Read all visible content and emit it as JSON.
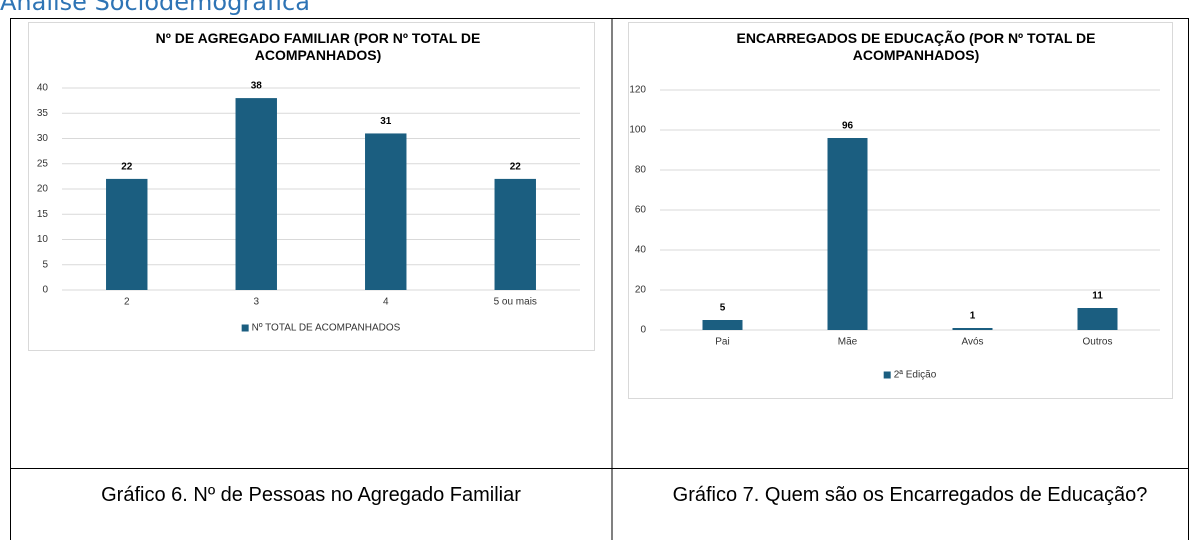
{
  "heading": "Análise Sociodemográfica",
  "chart_data": [
    {
      "type": "bar",
      "title": "Nº DE AGREGADO FAMILIAR (POR Nº TOTAL DE ACOMPANHADOS)",
      "categories": [
        "2",
        "3",
        "4",
        "5 ou mais"
      ],
      "series": [
        {
          "name": "Nº TOTAL DE ACOMPANHADOS",
          "color": "#1b5e80",
          "values": [
            22,
            38,
            31,
            22
          ]
        }
      ],
      "ylim": [
        0,
        40
      ],
      "yticks": [
        0,
        5,
        10,
        15,
        20,
        25,
        30,
        35,
        40
      ],
      "grid": true,
      "legend": "bottom"
    },
    {
      "type": "bar",
      "title": "ENCARREGADOS DE EDUCAÇÃO (POR Nº TOTAL DE ACOMPANHADOS)",
      "categories": [
        "Pai",
        "Mãe",
        "Avós",
        "Outros"
      ],
      "series": [
        {
          "name": "2ª Edição",
          "color": "#1b5e80",
          "values": [
            5,
            96,
            1,
            11
          ]
        }
      ],
      "ylim": [
        0,
        120
      ],
      "yticks": [
        0,
        20,
        40,
        60,
        80,
        100,
        120
      ],
      "grid": true,
      "legend": "bottom"
    }
  ],
  "captions": [
    "Gráfico 6. Nº de Pessoas no Agregado Familiar",
    "Gráfico 7. Quem são os Encarregados de Educação?"
  ]
}
